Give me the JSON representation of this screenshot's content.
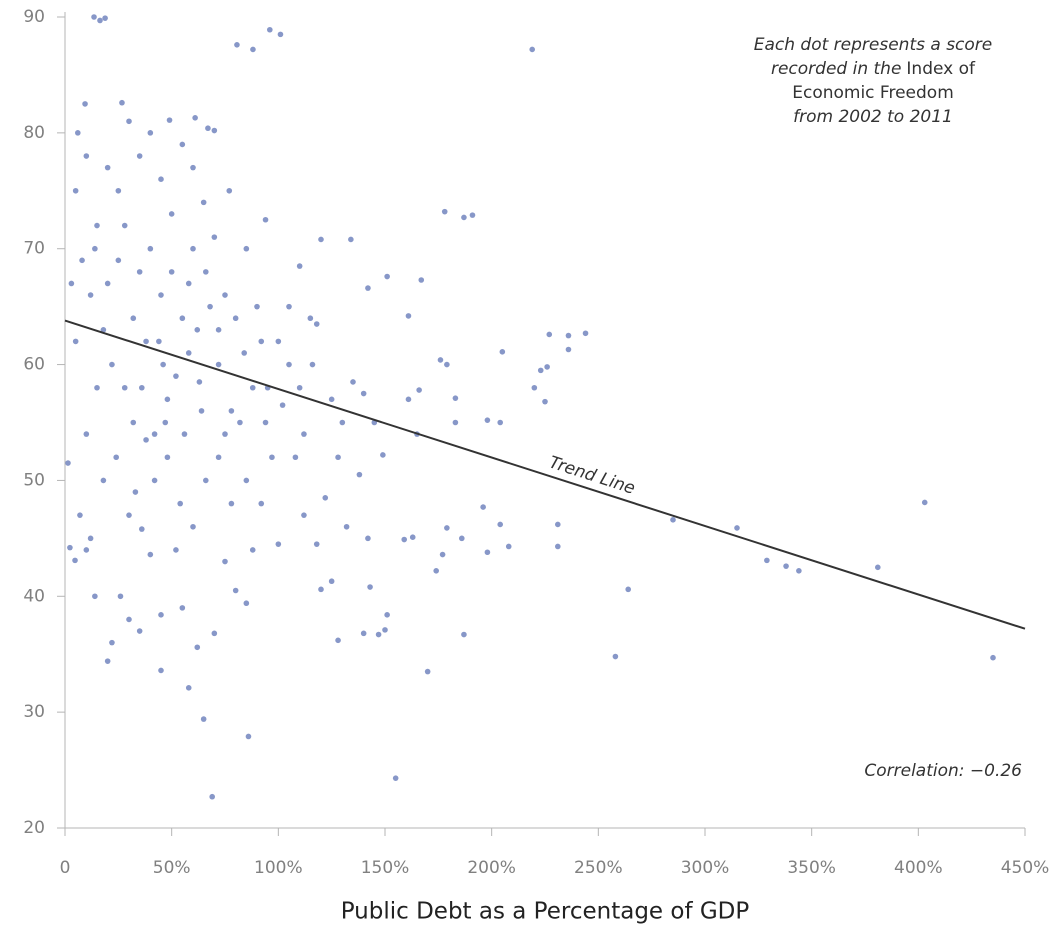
{
  "chart_data": {
    "type": "scatter",
    "x_label": "Public Debt as a Percentage of GDP",
    "note": [
      "Each dot represents a score",
      "recorded in the",
      "Index of",
      "Economic Freedom",
      "from 2002 to 2011"
    ],
    "correlation_label": "Correlation: −0.26",
    "xlim": [
      0,
      450
    ],
    "xticks": [
      0,
      {
        "value": 50,
        "label": "50%"
      },
      {
        "value": 100,
        "label": "100%"
      },
      {
        "value": 150,
        "label": "150%"
      },
      {
        "value": 200,
        "label": "200%"
      },
      {
        "value": 250,
        "label": "250%"
      },
      {
        "value": 300,
        "label": "300%"
      },
      {
        "value": 350,
        "label": "350%"
      },
      {
        "value": 400,
        "label": "400%"
      },
      {
        "value": 450,
        "label": "450%"
      }
    ],
    "ylim": [
      20,
      90
    ],
    "yticks": [
      20,
      30,
      40,
      50,
      60,
      70,
      80,
      90
    ],
    "grid": false,
    "trend_line": {
      "label": "Trend Line",
      "x": [
        0,
        450
      ],
      "y": [
        63.8,
        37.2
      ],
      "color": "#333333"
    },
    "x": [
      13.6,
      16.4,
      18.8,
      80.6,
      88.1,
      96,
      101,
      219,
      178,
      187,
      191,
      120,
      134,
      151,
      167,
      142,
      161,
      227,
      236,
      244,
      236,
      205,
      176,
      179,
      223,
      226,
      220,
      166,
      161,
      183,
      225,
      198,
      204,
      183,
      165,
      149,
      285,
      315,
      403,
      196,
      204,
      208,
      186,
      179,
      198,
      231,
      231,
      163,
      159,
      174,
      177,
      264,
      329,
      338,
      344,
      381,
      187,
      151,
      150,
      147,
      258,
      435,
      170,
      155,
      86,
      65,
      69,
      58,
      45,
      20,
      1.4,
      2.3,
      4.7,
      9.4,
      26.7,
      6,
      49,
      61,
      67,
      70,
      94,
      110,
      115,
      118,
      125,
      130,
      135,
      140,
      145,
      128,
      138,
      122,
      112,
      118,
      132,
      142,
      125,
      120,
      143,
      128,
      140,
      108,
      105,
      100,
      102,
      110,
      95,
      97,
      90,
      85,
      92,
      88,
      100,
      80,
      85,
      75,
      78,
      82,
      72,
      75,
      70,
      77,
      65,
      60,
      55,
      50,
      45,
      40,
      35,
      30,
      25,
      20,
      15,
      10,
      5,
      8,
      12,
      18,
      22,
      28,
      32,
      38,
      42,
      48,
      52,
      58,
      62,
      68,
      55,
      45,
      35,
      25,
      15,
      10,
      5,
      3,
      7,
      12,
      18,
      24,
      30,
      36,
      42,
      48,
      54,
      60,
      66,
      72,
      78,
      84,
      88,
      64,
      56,
      46,
      38,
      32,
      20,
      14,
      28,
      40,
      50,
      60,
      66,
      72,
      80,
      26,
      30,
      22,
      35,
      45,
      55,
      62,
      70,
      52,
      40,
      14,
      10,
      33,
      44,
      36,
      58,
      63,
      47,
      75,
      85,
      94,
      105,
      112,
      116,
      92
    ],
    "series": [
      {
        "color": "#8797c8",
        "values": [
          90,
          89.7,
          89.9,
          87.6,
          87.2,
          88.9,
          88.5,
          87.2,
          73.2,
          72.7,
          72.9,
          70.8,
          70.8,
          67.6,
          67.3,
          66.6,
          64.2,
          62.6,
          62.5,
          62.7,
          61.3,
          61.1,
          60.4,
          60,
          59.5,
          59.8,
          58,
          57.8,
          57,
          57.1,
          56.8,
          55.2,
          55,
          55,
          54,
          52.2,
          46.6,
          45.9,
          48.1,
          47.7,
          46.2,
          44.3,
          45,
          45.9,
          43.8,
          46.2,
          44.3,
          45.1,
          44.9,
          42.2,
          43.6,
          40.6,
          43.1,
          42.6,
          42.2,
          42.5,
          36.7,
          38.4,
          37.1,
          36.7,
          34.8,
          34.7,
          33.5,
          24.3,
          27.9,
          29.4,
          22.7,
          32.1,
          33.6,
          34.4,
          51.5,
          44.2,
          43.1,
          82.5,
          82.6,
          80,
          81.1,
          81.3,
          80.4,
          80.2,
          72.5,
          68.5,
          64,
          63.5,
          57,
          55,
          58.5,
          57.5,
          55,
          52,
          50.5,
          48.5,
          47,
          44.5,
          46,
          45,
          41.3,
          40.6,
          40.8,
          36.2,
          36.8,
          52,
          60,
          62,
          56.5,
          58,
          58,
          52,
          65,
          70,
          48,
          44,
          44.5,
          40.5,
          39.4,
          43,
          48,
          55,
          60,
          66,
          71,
          75,
          74,
          77,
          79,
          73,
          76,
          80,
          78,
          81,
          75,
          77,
          72,
          78,
          75,
          69,
          66,
          63,
          60,
          58,
          55,
          53.5,
          54,
          57,
          59,
          61,
          63,
          65,
          64,
          66,
          68,
          69,
          58,
          54,
          62,
          67,
          47,
          45,
          50,
          52,
          47,
          45.8,
          50,
          52,
          48,
          46,
          50,
          52,
          56,
          61,
          58,
          56,
          54,
          60,
          62,
          64,
          67,
          70,
          72,
          70,
          68,
          70,
          68,
          63,
          64,
          40,
          38,
          36,
          37,
          38.4,
          39,
          35.6,
          36.8,
          44,
          43.6,
          40,
          44,
          49,
          62,
          58,
          67,
          58.5,
          55,
          54,
          50,
          55,
          65,
          54,
          60,
          62
        ]
      }
    ]
  }
}
